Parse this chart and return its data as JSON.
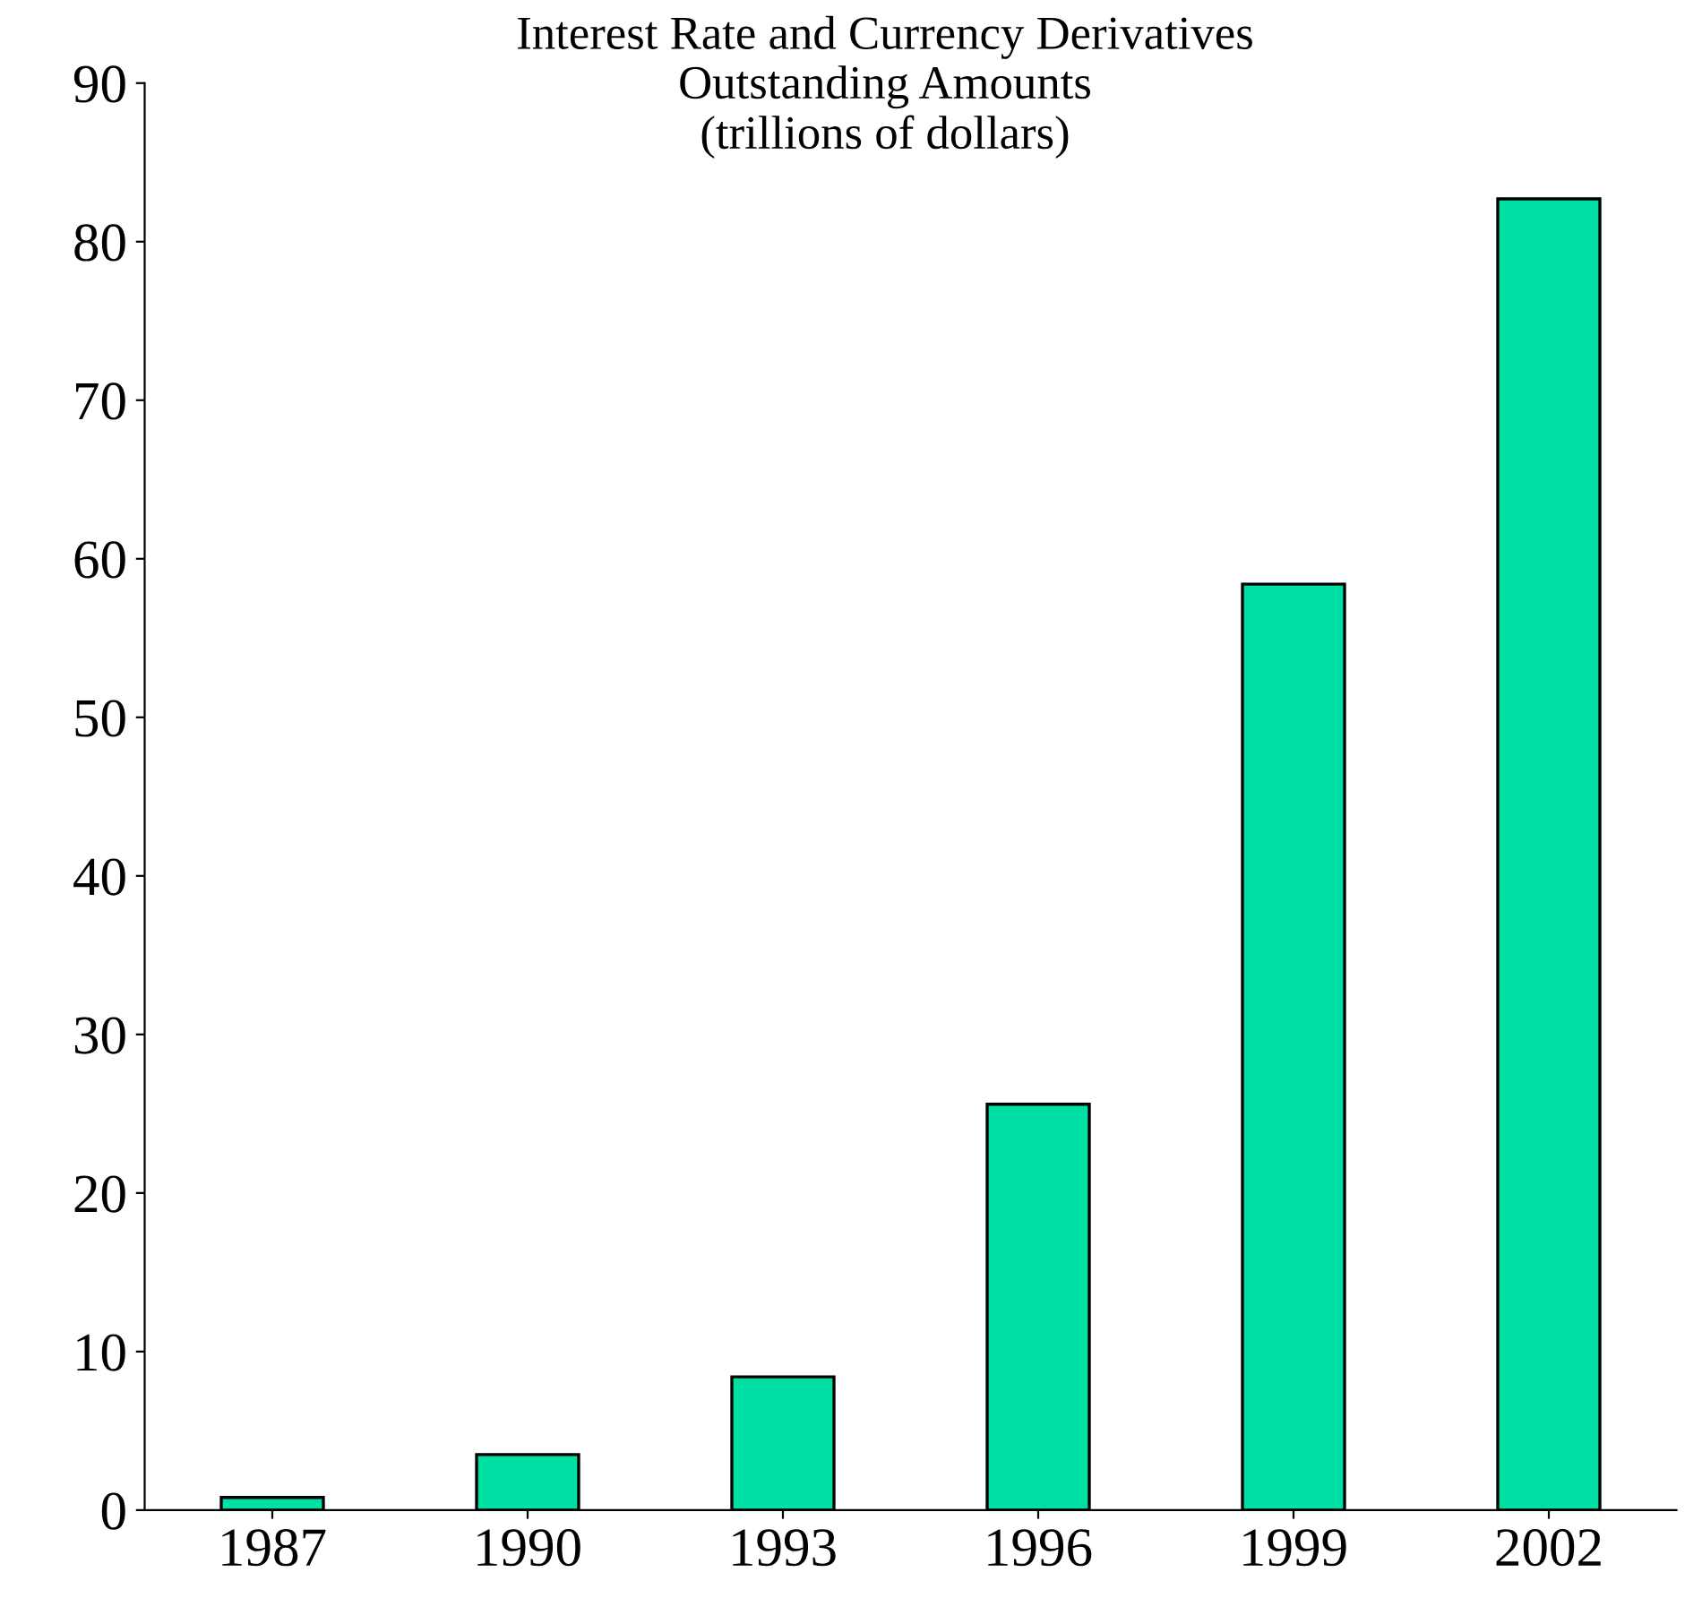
{
  "chart_data": {
    "type": "bar",
    "title": "Interest Rate and Currency Derivatives\nOutstanding Amounts\n(trillions of dollars)",
    "categories": [
      "1987",
      "1990",
      "1993",
      "1996",
      "1999",
      "2002"
    ],
    "values": [
      0.8,
      3.5,
      8.4,
      25.6,
      58.4,
      82.7
    ],
    "color": "#00e0a4",
    "ylim": [
      0,
      90
    ],
    "yticks": [
      0,
      10,
      20,
      30,
      40,
      50,
      60,
      70,
      80,
      90
    ],
    "grid": false
  }
}
